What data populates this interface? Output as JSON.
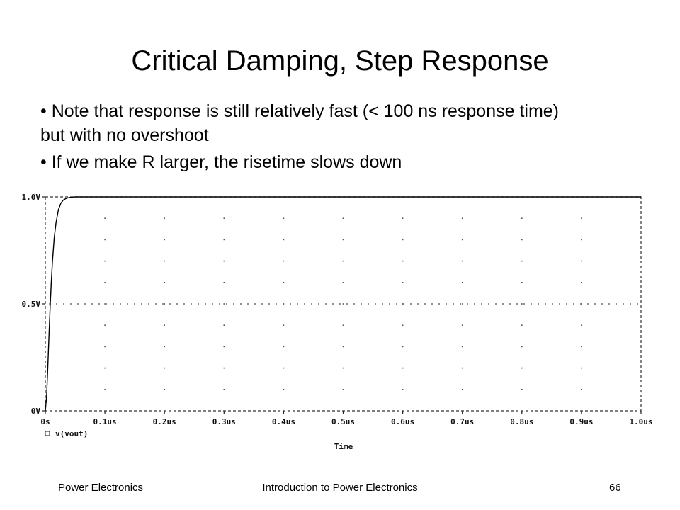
{
  "slide": {
    "title": "Critical Damping, Step Response",
    "bullets": [
      "Note that response is still relatively fast (< 100 ns response time) but with no overshoot",
      "If we make R larger, the risetime slows down"
    ]
  },
  "footer": {
    "left": "Power Electronics",
    "center": "Introduction to Power Electronics",
    "page": "66"
  },
  "chart_data": {
    "type": "line",
    "title": "",
    "xlabel": "Time",
    "ylabel": "",
    "x_unit_scale": "us",
    "xlim": [
      0,
      1.0
    ],
    "ylim": [
      0,
      1.0
    ],
    "x_ticks": [
      0,
      0.1,
      0.2,
      0.3,
      0.4,
      0.5,
      0.6,
      0.7,
      0.8,
      0.9,
      1.0
    ],
    "x_tick_labels": [
      "0s",
      "0.1us",
      "0.2us",
      "0.3us",
      "0.4us",
      "0.5us",
      "0.6us",
      "0.7us",
      "0.8us",
      "0.9us",
      "1.0us"
    ],
    "y_ticks": [
      0,
      0.5,
      1.0
    ],
    "y_tick_labels": [
      "0V",
      "0.5V",
      "1.0V"
    ],
    "grid": "dotted",
    "legend": {
      "position": "bottom-left",
      "marker": "square",
      "entries": [
        "v(vout)"
      ]
    },
    "series": [
      {
        "name": "v(vout)",
        "color": "#000000",
        "x": [
          0,
          0.002,
          0.004,
          0.006,
          0.008,
          0.01,
          0.012,
          0.015,
          0.018,
          0.022,
          0.026,
          0.03,
          0.035,
          0.04,
          0.045,
          0.05,
          0.06,
          0.08,
          0.1,
          0.2,
          0.3,
          0.4,
          0.5,
          0.6,
          0.7,
          0.8,
          0.9,
          1.0
        ],
        "y": [
          0,
          0.06,
          0.19,
          0.34,
          0.48,
          0.6,
          0.7,
          0.81,
          0.88,
          0.94,
          0.97,
          0.985,
          0.993,
          0.997,
          0.999,
          1.0,
          1.0,
          1.0,
          1.0,
          1.0,
          1.0,
          1.0,
          1.0,
          1.0,
          1.0,
          1.0,
          1.0,
          1.0
        ]
      }
    ]
  }
}
